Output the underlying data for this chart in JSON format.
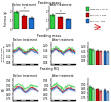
{
  "title_row0": "Fasting mass",
  "title_row1": "Feeding mass",
  "title_row2": "Fasting RQ",
  "panel_sub_titles": [
    "Before treatment",
    "After treatment"
  ],
  "legend_labels": [
    "Myf5-cre / +TAM",
    "aP2-cre / +TAM",
    "aP2-cre / -TAM"
  ],
  "legend_colors": [
    "#2ecc40",
    "#cc0000",
    "#1a6fcc"
  ],
  "bar_colors": [
    "#2ecc40",
    "#cc0000",
    "#1a6fcc"
  ],
  "row0_before": [
    1.85,
    1.5,
    1.25
  ],
  "row0_after": [
    1.6,
    1.3,
    1.1
  ],
  "row0_ylim": [
    0,
    2.5
  ],
  "row0_yticks": [
    0,
    1,
    2
  ],
  "row0_ylabel": "Fat mass (g)",
  "row1_ylabel": "Energy exp.\n(kcal/h/lean g)",
  "row1_ylim": [
    0.06,
    0.22
  ],
  "row1_yticks": [
    0.08,
    0.12,
    0.16,
    0.2
  ],
  "row1_bar_before": [
    0.17,
    0.155,
    0.148
  ],
  "row1_bar_after": [
    0.165,
    0.15,
    0.143
  ],
  "row1_bar_ylim": [
    0.0,
    0.25
  ],
  "row1_bar_yticks": [
    0.05,
    0.1,
    0.15,
    0.2
  ],
  "row2_ylabel": "RQ",
  "row2_ylim": [
    0.72,
    0.98
  ],
  "row2_yticks": [
    0.75,
    0.8,
    0.85,
    0.9,
    0.95
  ],
  "row2_bar_before": [
    0.87,
    0.84,
    0.83
  ],
  "row2_bar_after": [
    0.85,
    0.82,
    0.81
  ],
  "row2_bar_ylim": [
    0.7,
    0.98
  ],
  "row2_bar_yticks": [
    0.75,
    0.8,
    0.85,
    0.9
  ],
  "n_time": 48,
  "bg_color": "#ffffff",
  "line_colors": [
    "#2ecc40",
    "#cc0000",
    "#1a6fcc"
  ],
  "line_bases_row1": [
    0.16,
    0.15,
    0.145
  ],
  "line_bases_row2": [
    0.875,
    0.845,
    0.835
  ],
  "tam_arrow_color": "#cc0000"
}
